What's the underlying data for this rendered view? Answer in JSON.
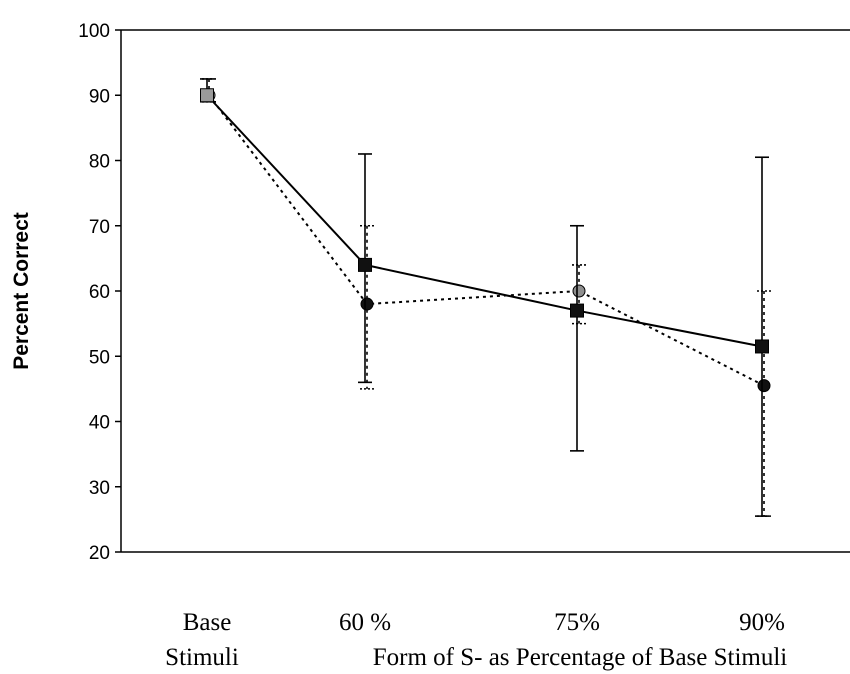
{
  "chart_data": {
    "type": "line",
    "title": "",
    "ylabel": "Percent Correct",
    "xlabel": "Form of S- as Percentage of Base Stimuli",
    "categories": [
      "Base",
      "60 %",
      "75%",
      "90%"
    ],
    "category_sublabels": [
      "Stimuli",
      "",
      "",
      ""
    ],
    "ylim": [
      20,
      100
    ],
    "yticks": [
      20,
      30,
      40,
      50,
      60,
      70,
      80,
      90,
      100
    ],
    "grid": false,
    "legend": "none",
    "series": [
      {
        "values": [
          90,
          64,
          57,
          51.5
        ],
        "err_low": [
          89,
          46,
          35.5,
          25.5
        ],
        "err_high": [
          92.5,
          81,
          70,
          80.5
        ],
        "marker": "square",
        "line_style": "solid",
        "color": "#000000"
      },
      {
        "values": [
          90,
          58,
          60,
          45.5
        ],
        "err_low": [
          89,
          45,
          55,
          25.5
        ],
        "err_high": [
          92.5,
          70,
          64,
          60
        ],
        "marker": "circle",
        "line_style": "dotted",
        "color": "#000000"
      }
    ]
  }
}
